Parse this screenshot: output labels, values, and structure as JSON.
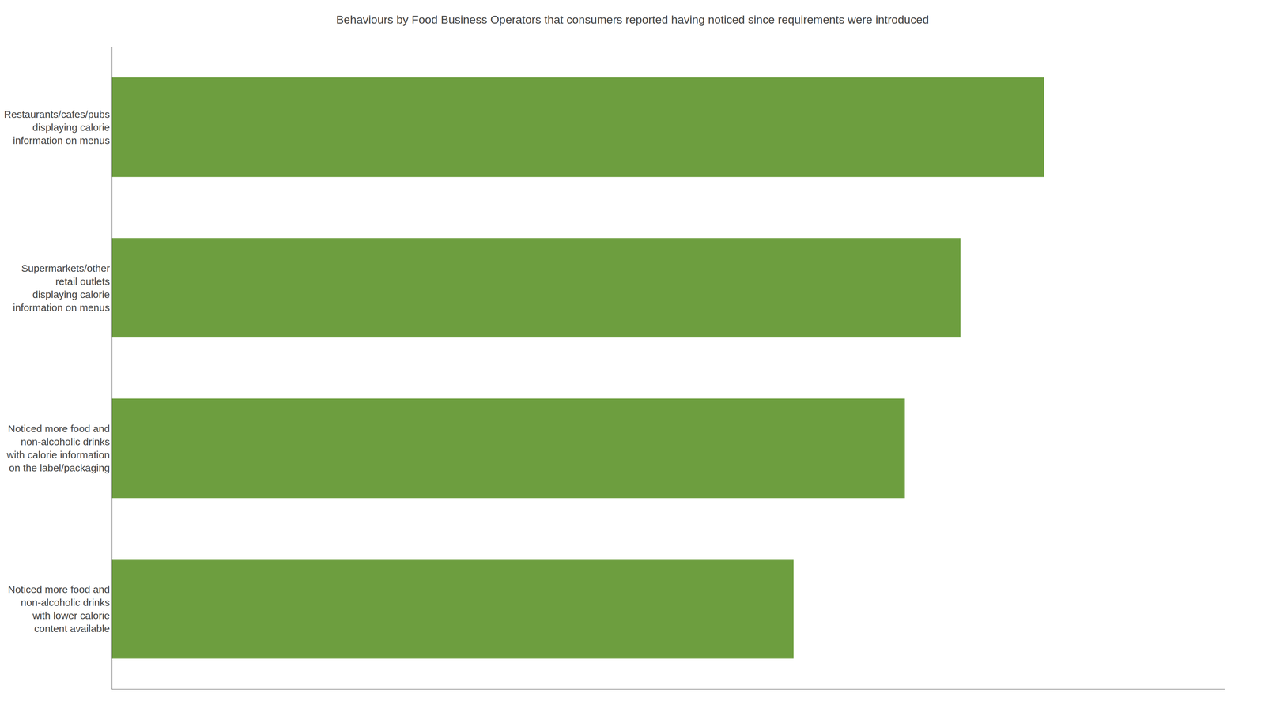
{
  "chart_data": {
    "type": "bar",
    "orientation": "horizontal",
    "title": "Behaviours by Food Business Operators that consumers reported having noticed since requirements were introduced",
    "categories": [
      "Restaurants/cafes/pubs\ndisplaying calorie\ninformation on menus",
      "Supermarkets/other\nretail outlets\ndisplaying calorie\ninformation on menus",
      "Noticed more food and\nnon-alcoholic drinks\nwith calorie information\non the label/packaging",
      "Noticed more food and\nnon-alcoholic drinks\nwith lower calorie\ncontent available"
    ],
    "values": [
      67,
      61,
      57,
      49
    ],
    "color": "#6d9e3f",
    "xlim": [
      0,
      80
    ],
    "grid": false,
    "tick_labels": "y"
  }
}
